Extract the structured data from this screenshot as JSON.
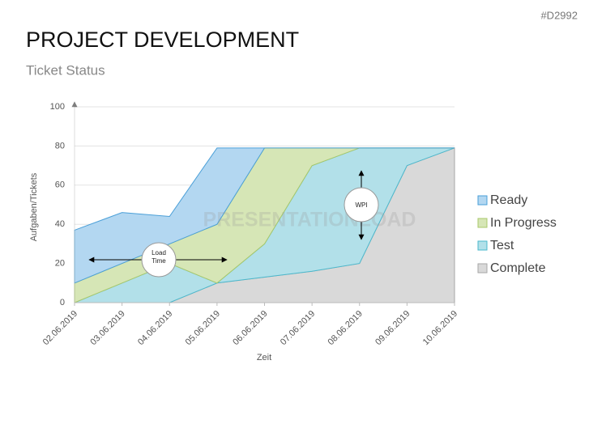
{
  "tag": "#D2992",
  "chart_data": {
    "type": "stacked-area",
    "title": "PROJECT DEVELOPMENT",
    "subtitle": "Ticket Status",
    "watermark": "PRESENTATIONLOAD",
    "x_label": "Zeit",
    "y_label": "Aufgaben/Tickets",
    "categories": [
      "02.06.2019",
      "03.06.2019",
      "04.06.2019",
      "05.06.2019",
      "06.06.2019",
      "07.06.2019",
      "08.06.2019",
      "09.06.2019",
      "10.06.2019"
    ],
    "series": [
      {
        "name": "Ready",
        "color": "#b3d7f1",
        "stroke": "#4a9fd8",
        "values": [
          27,
          26,
          14,
          39,
          0,
          0,
          0,
          0,
          0
        ]
      },
      {
        "name": "In Progress",
        "color": "#d6e6b6",
        "stroke": "#a8c86a",
        "values": [
          10,
          10,
          10,
          30,
          49,
          9,
          0,
          0,
          0
        ]
      },
      {
        "name": "Test",
        "color": "#b2e0e9",
        "stroke": "#4bb8cc",
        "values": [
          0,
          10,
          20,
          0,
          17,
          54,
          59,
          9,
          0
        ]
      },
      {
        "name": "Complete",
        "color": "#d9d9d9",
        "stroke": "#a6a6a6",
        "values": [
          0,
          0,
          0,
          10,
          13,
          16,
          20,
          70,
          79
        ]
      }
    ],
    "ylim": [
      0,
      100
    ],
    "yticks": [
      0,
      20,
      40,
      60,
      80,
      100
    ],
    "grid": true,
    "legend": "right",
    "annotations": [
      "Load Time",
      "WPI"
    ]
  }
}
